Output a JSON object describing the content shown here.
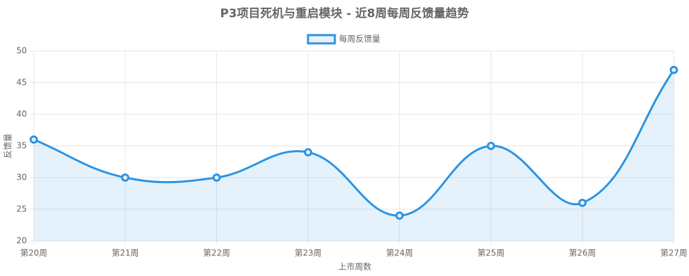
{
  "chart_data": {
    "type": "line",
    "title": "P3项目死机与重启模块 - 近8周每周反馈量趋势",
    "x_label": "上市周数",
    "y_label": "反馈量",
    "categories": [
      "第20周",
      "第21周",
      "第22周",
      "第23周",
      "第24周",
      "第25周",
      "第26周",
      "第27周"
    ],
    "series": [
      {
        "name": "每周反馈量",
        "color": "#2a94e4",
        "values": [
          36,
          30,
          30,
          34,
          24,
          35,
          26,
          47
        ]
      }
    ],
    "ylim": [
      20,
      50
    ],
    "yticks": [
      20,
      25,
      30,
      35,
      40,
      45,
      50
    ],
    "grid": true,
    "legend": "top"
  }
}
